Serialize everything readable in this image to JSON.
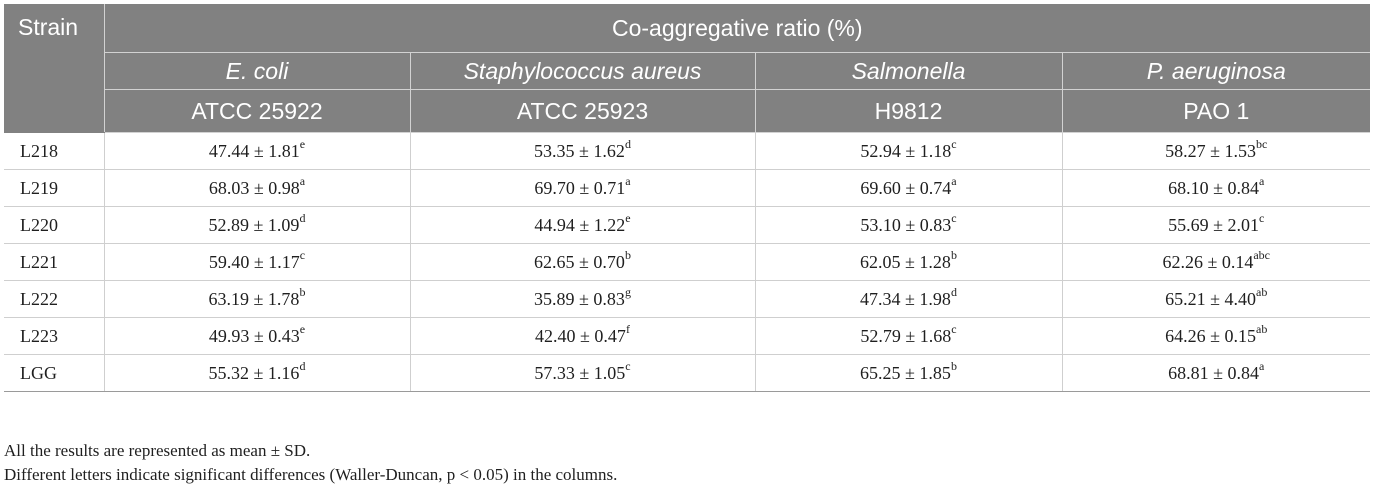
{
  "table": {
    "strain_header": "Strain",
    "group_header": "Co-aggregative ratio (%)",
    "columns": [
      {
        "species": "E. coli",
        "code": "ATCC 25922"
      },
      {
        "species": "Staphylococcus aureus",
        "code": "ATCC 25923"
      },
      {
        "species": "Salmonella",
        "code": "H9812"
      },
      {
        "species": "P. aeruginosa",
        "code": "PAO 1"
      }
    ],
    "rows": [
      {
        "strain": "L218",
        "cells": [
          {
            "value": "47.44 ± 1.81",
            "sup": "e"
          },
          {
            "value": "53.35 ± 1.62",
            "sup": "d"
          },
          {
            "value": "52.94 ± 1.18",
            "sup": "c"
          },
          {
            "value": "58.27 ± 1.53",
            "sup": "bc"
          }
        ]
      },
      {
        "strain": "L219",
        "cells": [
          {
            "value": "68.03 ± 0.98",
            "sup": "a"
          },
          {
            "value": "69.70 ± 0.71",
            "sup": "a"
          },
          {
            "value": "69.60 ± 0.74",
            "sup": "a"
          },
          {
            "value": "68.10 ± 0.84",
            "sup": "a"
          }
        ]
      },
      {
        "strain": "L220",
        "cells": [
          {
            "value": "52.89 ± 1.09",
            "sup": "d"
          },
          {
            "value": "44.94 ± 1.22",
            "sup": "e"
          },
          {
            "value": "53.10 ± 0.83",
            "sup": "c"
          },
          {
            "value": "55.69 ± 2.01",
            "sup": "c"
          }
        ]
      },
      {
        "strain": "L221",
        "cells": [
          {
            "value": "59.40 ± 1.17",
            "sup": "c"
          },
          {
            "value": "62.65 ± 0.70",
            "sup": "b"
          },
          {
            "value": "62.05 ± 1.28",
            "sup": "b"
          },
          {
            "value": "62.26 ± 0.14",
            "sup": "abc"
          }
        ]
      },
      {
        "strain": "L222",
        "cells": [
          {
            "value": "63.19 ± 1.78",
            "sup": "b"
          },
          {
            "value": "35.89 ± 0.83",
            "sup": "g"
          },
          {
            "value": "47.34 ± 1.98",
            "sup": "d"
          },
          {
            "value": "65.21 ± 4.40",
            "sup": "ab"
          }
        ]
      },
      {
        "strain": "L223",
        "cells": [
          {
            "value": "49.93 ± 0.43",
            "sup": "e"
          },
          {
            "value": "42.40 ± 0.47",
            "sup": "f"
          },
          {
            "value": "52.79 ± 1.68",
            "sup": "c"
          },
          {
            "value": "64.26 ± 0.15",
            "sup": "ab"
          }
        ]
      },
      {
        "strain": "LGG",
        "cells": [
          {
            "value": "55.32 ± 1.16",
            "sup": "d"
          },
          {
            "value": "57.33 ± 1.05",
            "sup": "c"
          },
          {
            "value": "65.25 ± 1.85",
            "sup": "b"
          },
          {
            "value": "68.81 ± 0.84",
            "sup": "a"
          }
        ]
      }
    ]
  },
  "notes": {
    "line1": "All the results are represented as mean ± SD.",
    "line2": "Different letters indicate significant differences (Waller-Duncan, p < 0.05) in the columns."
  },
  "colors": {
    "header_bg": "#818181",
    "header_text": "#ffffff",
    "rule": "#cfcfcf"
  }
}
